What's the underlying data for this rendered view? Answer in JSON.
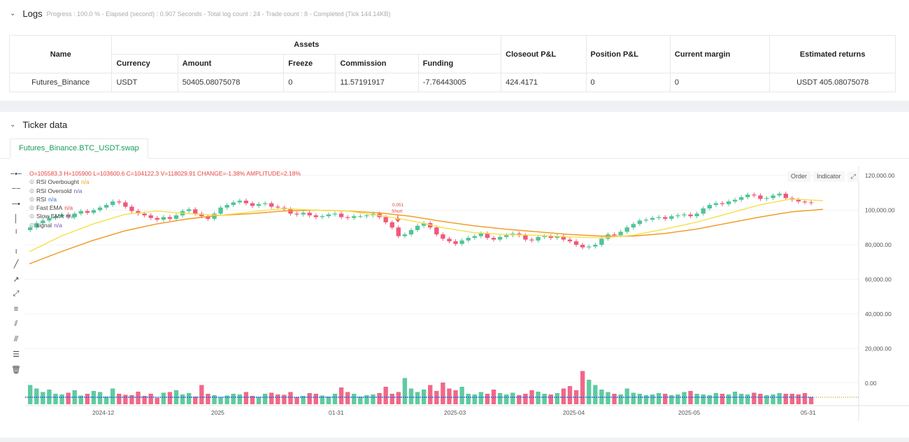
{
  "logs": {
    "title": "Logs",
    "progress": "Progress : 100.0 % - Elapsed (second) : 0.907  Seconds - Total log count : 24 - Trade count : 8 - Completed (Tick 144.14KB)",
    "table": {
      "headers": {
        "name": "Name",
        "assets": "Assets",
        "currency": "Currency",
        "amount": "Amount",
        "freeze": "Freeze",
        "commission": "Commission",
        "funding": "Funding",
        "closeout_pl": "Closeout P&L",
        "position_pl": "Position P&L",
        "current_margin": "Current margin",
        "estimated_returns": "Estimated returns"
      },
      "row": {
        "name": "Futures_Binance",
        "currency": "USDT",
        "amount": "50405.08075078",
        "freeze": "0",
        "commission": "11.57191917",
        "funding": "-7.76443005",
        "closeout_pl": "424.4171",
        "position_pl": "0",
        "current_margin": "0",
        "estimated_returns": "USDT 405.08075078"
      }
    }
  },
  "ticker": {
    "title": "Ticker data",
    "tab": "Futures_Binance.BTC_USDT.swap",
    "ohlc": "O=105583.3  H=105900  L=103600.6  C=104122.3  V=118029.91  CHANGE=-1.38%  AMPLITUDE=2.18%",
    "legend": [
      {
        "label": "RSI Overbought",
        "value": "n/a",
        "cls": "na-orange"
      },
      {
        "label": "RSI Oversold",
        "value": "n/a",
        "cls": "na-purple"
      },
      {
        "label": "RSI",
        "value": "n/a",
        "cls": "na-blue"
      },
      {
        "label": "Fast EMA",
        "value": "n/a",
        "cls": "na-red"
      },
      {
        "label": "Slow EMA",
        "value": "n/a",
        "cls": "na-teal"
      },
      {
        "label": "signal",
        "value": "n/a",
        "cls": "na-purple"
      }
    ],
    "buttons": {
      "order": "Order",
      "indicator": "Indicator"
    },
    "tools": [
      "crosshair-icon",
      "horizontal-line-icon",
      "horizontal-ray-icon",
      "vertical-line-icon",
      "vertical-segment-icon",
      "vertical-ray-icon",
      "trend-line-icon",
      "trend-ray-icon",
      "extended-line-icon",
      "price-range-icon",
      "parallel-channel-icon",
      "pitchfork-icon",
      "fib-icon",
      "trash-icon"
    ],
    "colors": {
      "up": "#4fc497",
      "down": "#f0587a",
      "fast_ema": "#f5e04a",
      "slow_ema": "#f0961e",
      "signal": "#e8433f",
      "rsi": "#2f6fd6"
    }
  },
  "chart_data": {
    "type": "candlestick",
    "y_ticks": [
      "120,000.00",
      "100,000.00",
      "80,000.00",
      "60,000.00",
      "40,000.00",
      "20,000.00",
      "0.00"
    ],
    "ylim": [
      0,
      130000
    ],
    "x_ticks": [
      "2024-12",
      "2025",
      "01-31",
      "2025-03",
      "2025-04",
      "2025-05",
      "05-31"
    ],
    "annotation": {
      "label_qty": "0.051",
      "label_side": "Short",
      "x_date": "2025-01-20"
    },
    "fast_ema_points": [
      [
        0,
        76000
      ],
      [
        5,
        85000
      ],
      [
        10,
        92000
      ],
      [
        15,
        97500
      ],
      [
        20,
        99500
      ],
      [
        25,
        98000
      ],
      [
        30,
        97000
      ],
      [
        35,
        99000
      ],
      [
        40,
        101000
      ],
      [
        45,
        100000
      ],
      [
        50,
        99500
      ],
      [
        55,
        97000
      ],
      [
        60,
        94000
      ],
      [
        65,
        90000
      ],
      [
        70,
        87000
      ],
      [
        75,
        86000
      ],
      [
        80,
        85500
      ],
      [
        85,
        84500
      ],
      [
        90,
        84000
      ],
      [
        95,
        85500
      ],
      [
        100,
        89000
      ],
      [
        105,
        93000
      ],
      [
        110,
        98000
      ],
      [
        115,
        103000
      ],
      [
        120,
        106500
      ],
      [
        125,
        105500
      ]
    ],
    "slow_ema_points": [
      [
        0,
        69000
      ],
      [
        5,
        76000
      ],
      [
        10,
        82500
      ],
      [
        15,
        88000
      ],
      [
        20,
        92000
      ],
      [
        25,
        95000
      ],
      [
        30,
        97000
      ],
      [
        35,
        98000
      ],
      [
        40,
        99500
      ],
      [
        45,
        100000
      ],
      [
        50,
        99500
      ],
      [
        55,
        98500
      ],
      [
        60,
        96500
      ],
      [
        65,
        93500
      ],
      [
        70,
        91000
      ],
      [
        75,
        89000
      ],
      [
        80,
        87500
      ],
      [
        85,
        86000
      ],
      [
        90,
        85000
      ],
      [
        95,
        85000
      ],
      [
        100,
        86500
      ],
      [
        105,
        89000
      ],
      [
        110,
        92500
      ],
      [
        115,
        96000
      ],
      [
        120,
        99000
      ],
      [
        125,
        100500
      ]
    ],
    "candles_close": [
      90000,
      92500,
      94000,
      95500,
      96500,
      97500,
      96000,
      98000,
      99500,
      98500,
      100000,
      101500,
      103000,
      105000,
      104500,
      102000,
      99500,
      98000,
      97000,
      95500,
      94500,
      96000,
      95000,
      97000,
      99500,
      100500,
      98000,
      96500,
      95000,
      98000,
      101500,
      103000,
      104500,
      105500,
      104000,
      102500,
      103500,
      104000,
      102000,
      101500,
      100500,
      98000,
      97500,
      98500,
      97000,
      96000,
      96500,
      97500,
      98000,
      96000,
      95500,
      96500,
      96500,
      97000,
      98000,
      96000,
      93000,
      90000,
      85000,
      86000,
      88500,
      91000,
      92500,
      90000,
      86000,
      83500,
      82000,
      80500,
      82500,
      84000,
      85000,
      86500,
      84000,
      83000,
      84500,
      85500,
      86500,
      85500,
      83000,
      82500,
      84500,
      85000,
      84000,
      85000,
      83000,
      82000,
      80000,
      78500,
      79000,
      80000,
      83500,
      86000,
      85500,
      87500,
      90000,
      92000,
      94000,
      94500,
      95500,
      96000,
      95000,
      96500,
      97000,
      97500,
      96500,
      98000,
      101000,
      103000,
      104000,
      103500,
      105000,
      106000,
      107500,
      109000,
      108500,
      106500,
      107000,
      108500,
      109500,
      107000,
      106000,
      105000,
      104500,
      104122
    ],
    "volumes_rel": [
      0.55,
      0.45,
      0.35,
      0.42,
      0.3,
      0.28,
      0.33,
      0.4,
      0.25,
      0.3,
      0.38,
      0.35,
      0.22,
      0.45,
      0.3,
      0.27,
      0.26,
      0.36,
      0.24,
      0.3,
      0.18,
      0.33,
      0.35,
      0.4,
      0.28,
      0.32,
      0.22,
      0.55,
      0.3,
      0.26,
      0.2,
      0.25,
      0.3,
      0.28,
      0.35,
      0.24,
      0.21,
      0.3,
      0.33,
      0.28,
      0.27,
      0.35,
      0.2,
      0.24,
      0.32,
      0.3,
      0.25,
      0.22,
      0.3,
      0.48,
      0.35,
      0.3,
      0.22,
      0.26,
      0.28,
      0.32,
      0.5,
      0.3,
      0.35,
      0.75,
      0.45,
      0.35,
      0.42,
      0.55,
      0.38,
      0.62,
      0.45,
      0.4,
      0.5,
      0.3,
      0.28,
      0.35,
      0.3,
      0.42,
      0.32,
      0.28,
      0.33,
      0.26,
      0.3,
      0.4,
      0.36,
      0.3,
      0.28,
      0.32,
      0.45,
      0.52,
      0.4,
      0.95,
      0.7,
      0.55,
      0.42,
      0.35,
      0.3,
      0.28,
      0.45,
      0.33,
      0.3,
      0.26,
      0.28,
      0.32,
      0.3,
      0.26,
      0.28,
      0.35,
      0.38,
      0.3,
      0.28,
      0.26,
      0.32,
      0.3,
      0.28,
      0.36,
      0.3,
      0.28,
      0.33,
      0.3,
      0.26,
      0.28,
      0.32,
      0.3,
      0.3,
      0.28,
      0.32,
      0.2
    ]
  }
}
